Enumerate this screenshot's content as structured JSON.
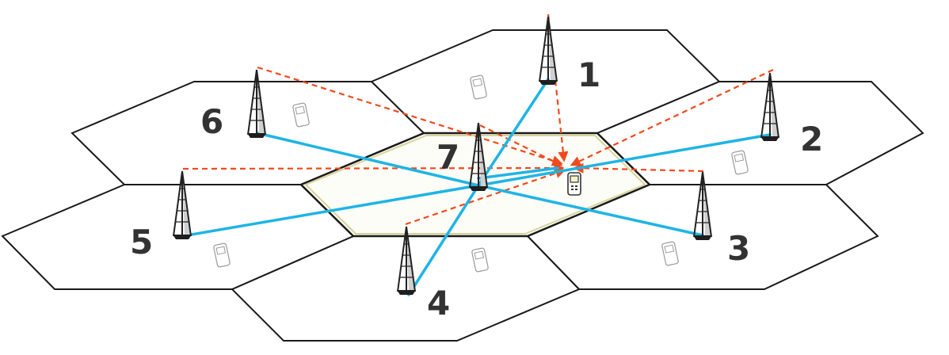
{
  "diagram": {
    "tower_labels": [
      "1",
      "2",
      "3",
      "4",
      "5",
      "6",
      "7"
    ],
    "colors": {
      "blue_link": "#1eb4e6",
      "red_dashed_link": "#f04a1e",
      "cell_outline": "#1a1a1a",
      "label_text": "#333333"
    },
    "icons": [
      "cell-tower-icon",
      "mobile-phone-icon"
    ]
  }
}
